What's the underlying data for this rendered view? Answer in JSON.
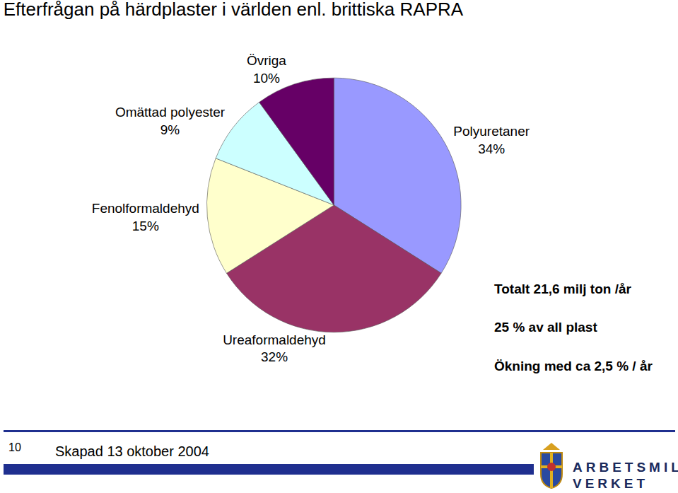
{
  "chart_data": {
    "type": "pie",
    "title": "Efterfrågan på härdplaster i världen enl. brittiska RAPRA",
    "categories": [
      "Polyuretaner",
      "Ureaformaldehyd",
      "Fenolformaldehyd",
      "Omättad polyester",
      "Övriga"
    ],
    "values": [
      34,
      32,
      15,
      9,
      10
    ],
    "value_labels": [
      "34%",
      "32%",
      "15%",
      "9%",
      "10%"
    ],
    "colors": [
      "#9999ff",
      "#993366",
      "#ffffcc",
      "#ccffff",
      "#660066"
    ],
    "data_labels": true,
    "annotations": [
      "Totalt 21,6 milj ton /år",
      "25 % av all plast",
      "Ökning med ca 2,5 % / år"
    ]
  },
  "footer": {
    "page": 10,
    "text": "Skapad 13 oktober 2004",
    "logo": [
      "ARBETSMILJÖ",
      "VERKET"
    ]
  }
}
